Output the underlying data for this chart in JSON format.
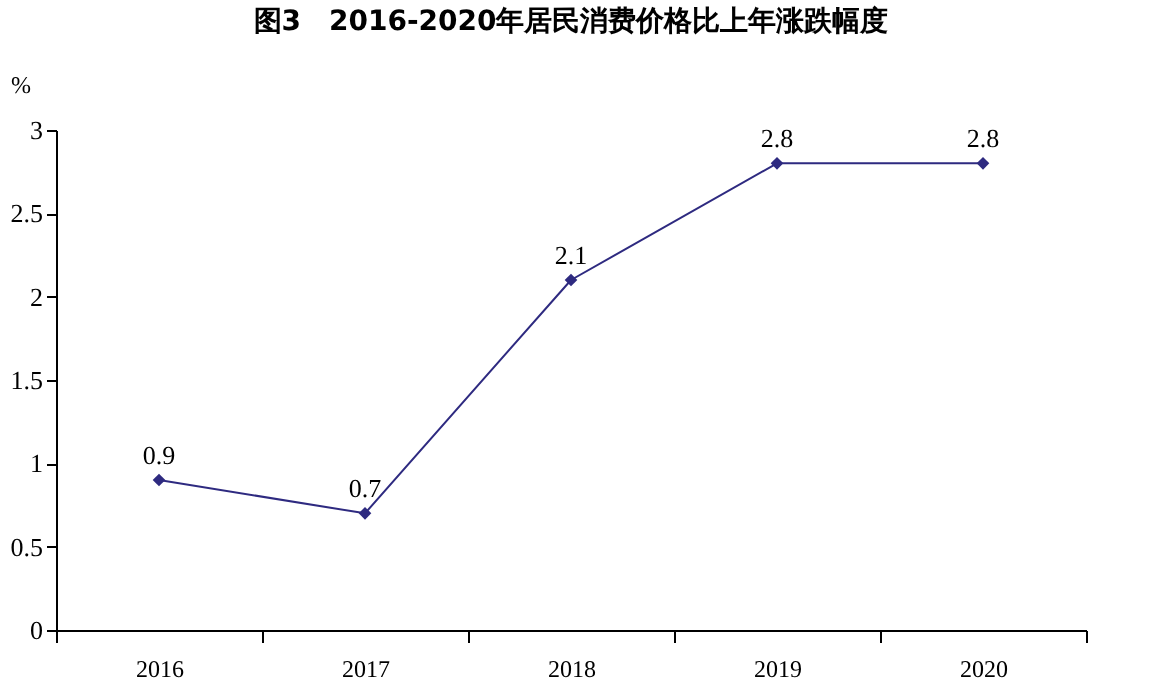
{
  "chart_data": {
    "type": "line",
    "title": "图3　2016-2020年居民消费价格比上年涨跌幅度",
    "ylabel": "%",
    "categories": [
      "2016",
      "2017",
      "2018",
      "2019",
      "2020"
    ],
    "series": [
      {
        "color": "#2e2a80",
        "values": [
          0.9,
          0.7,
          2.1,
          2.8,
          2.8
        ]
      }
    ],
    "ylim": [
      0,
      3
    ],
    "yticks": [
      0,
      0.5,
      1,
      1.5,
      2,
      2.5,
      3
    ],
    "grid": false,
    "legend": false,
    "marker": "diamond",
    "line_style": "solid",
    "data_labels": true
  }
}
